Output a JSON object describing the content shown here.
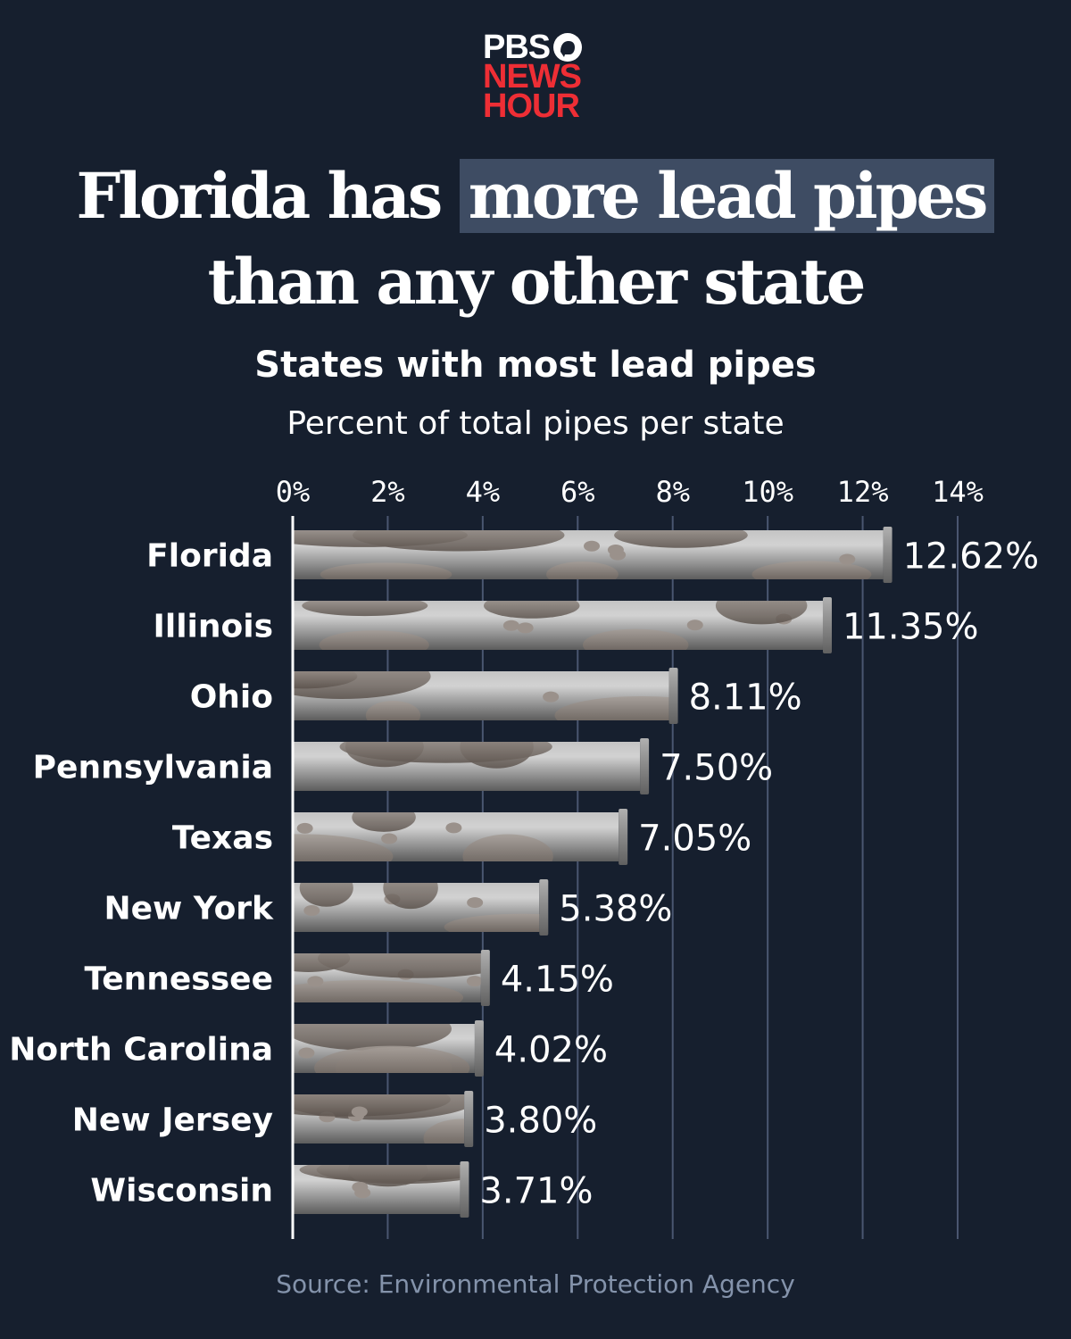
{
  "logo": {
    "line1": "PBS",
    "line2": "NEWS",
    "line3": "HOUR"
  },
  "headline": {
    "part1": "Florida has ",
    "highlight": "more lead pipes",
    "part2": "than any other state"
  },
  "colors": {
    "background": "#161f2e",
    "highlight": "#3e4c63",
    "gridline": "#4a5670",
    "logo_red": "#ee2e35",
    "pipe_light": "#d0d0d0",
    "pipe_dark": "#5a5a5a",
    "rust": "#7a6e66"
  },
  "chart_data": {
    "type": "bar",
    "orientation": "horizontal",
    "title": "States with most lead pipes",
    "subtitle": "Percent of total pipes per state",
    "categories": [
      "Florida",
      "Illinois",
      "Ohio",
      "Pennsylvania",
      "Texas",
      "New York",
      "Tennessee",
      "North Carolina",
      "New Jersey",
      "Wisconsin"
    ],
    "values": [
      12.62,
      11.35,
      8.11,
      7.5,
      7.05,
      5.38,
      4.15,
      4.02,
      3.8,
      3.71
    ],
    "value_labels": [
      "12.62%",
      "11.35%",
      "8.11%",
      "7.50%",
      "7.05%",
      "5.38%",
      "4.15%",
      "4.02%",
      "3.80%",
      "3.71%"
    ],
    "xlim": [
      0,
      14
    ],
    "x_ticks": [
      0,
      2,
      4,
      6,
      8,
      10,
      12,
      14
    ],
    "x_tick_labels": [
      "0%",
      "2%",
      "4%",
      "6%",
      "8%",
      "10%",
      "12%",
      "14%"
    ],
    "axis_position": "top",
    "grid": true
  },
  "source": "Source: Environmental Protection Agency"
}
